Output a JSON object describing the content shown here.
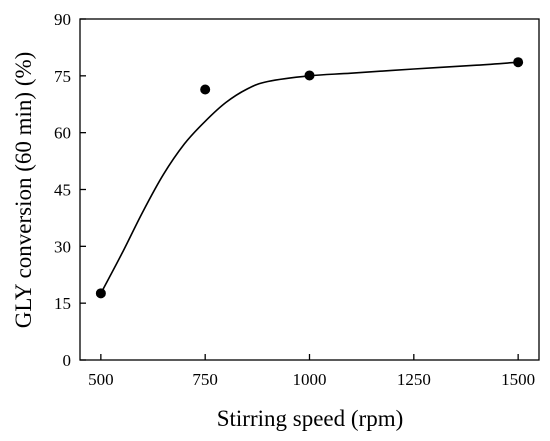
{
  "chart_data": {
    "type": "scatter",
    "xlabel": "Stirring speed (rpm)",
    "ylabel": "GLY conversion (60 min) (%)",
    "xlim": [
      450,
      1550
    ],
    "ylim": [
      0,
      90
    ],
    "xticks": [
      500,
      750,
      1000,
      1250,
      1500
    ],
    "yticks": [
      0,
      15,
      30,
      45,
      60,
      75,
      90
    ],
    "series": [
      {
        "type": "scatter",
        "x": [
          500,
          750,
          1000,
          1500
        ],
        "y": [
          17.6,
          71.4,
          75.1,
          78.6
        ]
      },
      {
        "type": "line",
        "x": [
          500,
          550,
          600,
          650,
          700,
          750,
          800,
          850,
          900,
          1000,
          1100,
          1250,
          1400,
          1500
        ],
        "y": [
          17.6,
          28.0,
          39.0,
          49.0,
          57.0,
          63.0,
          68.0,
          71.5,
          73.5,
          75.0,
          75.7,
          76.8,
          77.8,
          78.6
        ]
      }
    ],
    "grid": false,
    "legend": "none"
  }
}
